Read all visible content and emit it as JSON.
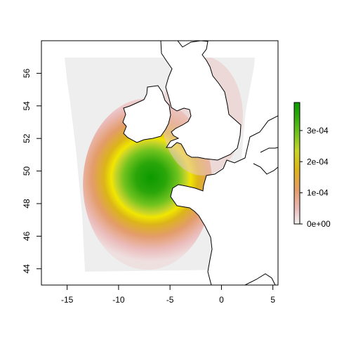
{
  "chart_data": {
    "type": "heatmap",
    "title": "",
    "xlabel": "",
    "ylabel": "",
    "xlim": [
      -17.5,
      5.5
    ],
    "ylim": [
      43,
      58
    ],
    "x_ticks": [
      -15,
      -10,
      -5,
      0,
      5
    ],
    "y_ticks": [
      44,
      46,
      48,
      50,
      52,
      54,
      56
    ],
    "x_tick_labels": [
      "-15",
      "-10",
      "-5",
      "0",
      "5"
    ],
    "y_tick_labels": [
      "44",
      "46",
      "48",
      "50",
      "52",
      "54",
      "56"
    ],
    "colorbar": {
      "min": 0,
      "max": 0.00039,
      "ticks": [
        0,
        0.0001,
        0.0002,
        0.0003
      ],
      "tick_labels": [
        "0e+00",
        "1e-04",
        "2e-04",
        "3e-04"
      ],
      "colors": [
        "#f2f2f2",
        "#ebbcbc",
        "#e39c6a",
        "#dcb41a",
        "#c8d42a",
        "#6fc21e",
        "#2aa60a",
        "#0b9a00"
      ]
    },
    "density_peak": {
      "lon": -6.5,
      "lat": 49.5,
      "value": 0.00039
    },
    "domain_background_color": "#eeeeee"
  }
}
